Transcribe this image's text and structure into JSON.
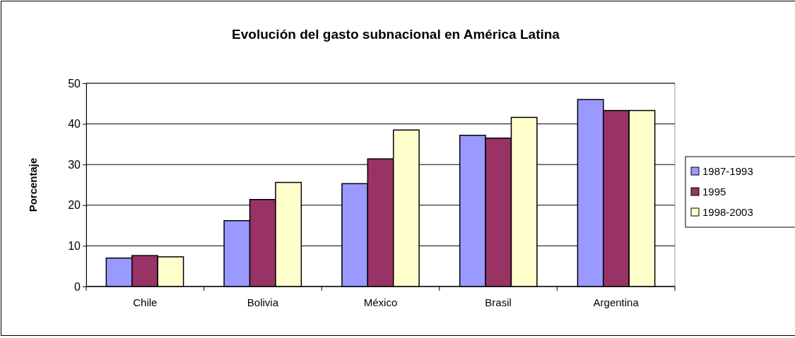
{
  "chart_data": {
    "type": "bar",
    "title": "Evolución del gasto subnacional en América Latina",
    "ylabel": "Porcentaje",
    "categories": [
      "Chile",
      "Bolivia",
      "México",
      "Brasil",
      "Argentina"
    ],
    "series": [
      {
        "name": "1987-1993",
        "color": "#9999ff",
        "values": [
          7.0,
          16.2,
          25.3,
          37.2,
          46.0
        ]
      },
      {
        "name": "1995",
        "color": "#993366",
        "values": [
          7.6,
          21.4,
          31.4,
          36.5,
          43.3
        ]
      },
      {
        "name": "1998-2003",
        "color": "#ffffcc",
        "values": [
          7.3,
          25.6,
          38.5,
          41.6,
          43.3
        ]
      }
    ],
    "ylim": [
      0,
      50
    ],
    "yticks": [
      0,
      10,
      20,
      30,
      40,
      50
    ],
    "grid": "y",
    "legend": "right"
  }
}
